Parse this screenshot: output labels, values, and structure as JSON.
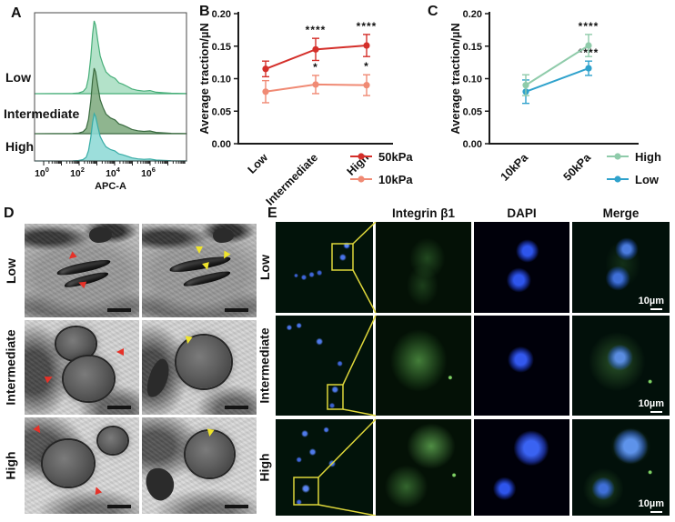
{
  "figure": {
    "background": "#ffffff",
    "panels": {
      "a": "A",
      "b": "B",
      "c": "C",
      "d": "D",
      "e": "E"
    }
  },
  "panelA": {
    "label": "A",
    "xlabel": "APC-A",
    "groups": [
      "Low",
      "Intermediate",
      "High"
    ],
    "colors": {
      "low_fill": "#a9dec2",
      "low_stroke": "#46ae78",
      "intermediate_fill": "#7fab80",
      "intermediate_stroke": "#3a6b40",
      "high_fill": "#8ed9d6",
      "high_stroke": "#38aca6"
    }
  },
  "panelB": {
    "label": "B"
  },
  "panelC": {
    "label": "C"
  },
  "panelD": {
    "label": "D",
    "rows": [
      "Low",
      "Intermediate",
      "High"
    ],
    "arrow_colors": {
      "red": "#e63128",
      "yellow": "#efe42c"
    }
  },
  "panelE": {
    "label": "E",
    "columns": [
      "Integrin β1",
      "DAPI",
      "Merge"
    ],
    "rows": [
      "Low",
      "Intermediate",
      "High"
    ],
    "scalebar": "10µm",
    "callout_color": "#ded73a"
  },
  "chart_data": [
    {
      "id": "A",
      "type": "area",
      "subtype": "flow-cytometry-histogram-overlay",
      "xlabel": "APC-A",
      "x_scale": "log10",
      "x_tick_exponents": [
        0,
        2,
        4,
        6
      ],
      "x_tick_labels": [
        "10^0",
        "10^2",
        "10^4",
        "10^6"
      ],
      "series": [
        {
          "name": "Low",
          "peak_x_log10": 3.3,
          "fill": "#a9dec2",
          "stroke": "#46ae78"
        },
        {
          "name": "Intermediate",
          "peak_x_log10": 3.3,
          "fill": "#7fab80",
          "stroke": "#3a6b40"
        },
        {
          "name": "High",
          "peak_x_log10": 3.3,
          "fill": "#8ed9d6",
          "stroke": "#38aca6"
        }
      ]
    },
    {
      "id": "B",
      "type": "line",
      "ylabel": "Average traction/µN",
      "categories": [
        "Low",
        "Intermediate",
        "High"
      ],
      "ylim": [
        0,
        0.2
      ],
      "yticks": [
        0,
        0.05,
        0.1,
        0.15,
        0.2
      ],
      "legend_position": "right-bottom",
      "series": [
        {
          "name": "50kPa",
          "color": "#d42f2a",
          "values": [
            0.115,
            0.145,
            0.151
          ],
          "errors": [
            0.012,
            0.017,
            0.017
          ],
          "sig": [
            "",
            "****",
            "****"
          ]
        },
        {
          "name": "10kPa",
          "color": "#f08a74",
          "values": [
            0.08,
            0.091,
            0.09
          ],
          "errors": [
            0.017,
            0.014,
            0.016
          ],
          "sig": [
            "",
            "*",
            "*"
          ]
        }
      ]
    },
    {
      "id": "C",
      "type": "line",
      "ylabel": "Average traction/µN",
      "categories": [
        "10kPa",
        "50kPa"
      ],
      "ylim": [
        0,
        0.2
      ],
      "yticks": [
        0,
        0.05,
        0.1,
        0.15,
        0.2
      ],
      "legend_position": "right-bottom",
      "series": [
        {
          "name": "High",
          "color": "#8fcbaa",
          "values": [
            0.09,
            0.151
          ],
          "errors": [
            0.016,
            0.017
          ],
          "sig": [
            "",
            "****"
          ]
        },
        {
          "name": "Low",
          "color": "#2fa2cc",
          "values": [
            0.08,
            0.116
          ],
          "errors": [
            0.018,
            0.011
          ],
          "sig": [
            "",
            "****"
          ]
        }
      ]
    }
  ]
}
